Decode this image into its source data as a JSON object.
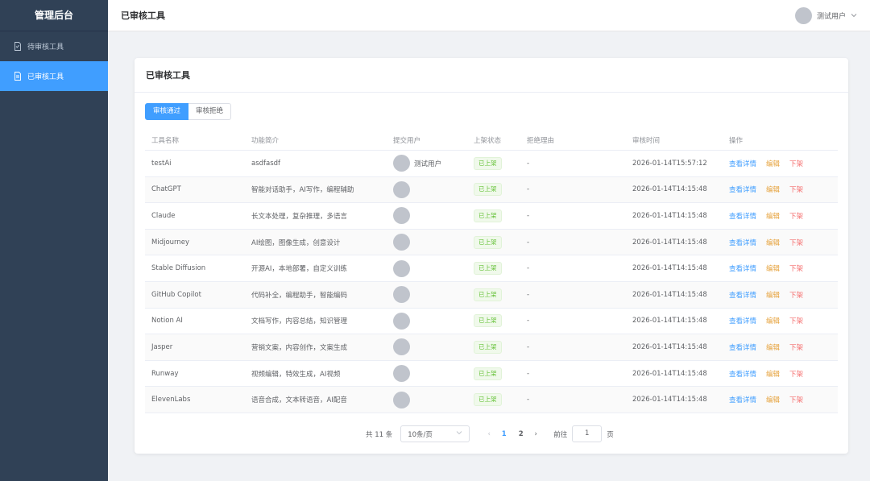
{
  "sidebar": {
    "title": "管理后台",
    "items": [
      {
        "label": "待审核工具"
      },
      {
        "label": "已审核工具"
      }
    ]
  },
  "header": {
    "title": "已审核工具",
    "user": "测试用户"
  },
  "card": {
    "title": "已审核工具",
    "tabs": [
      {
        "label": "审核通过"
      },
      {
        "label": "审核拒绝"
      }
    ]
  },
  "table": {
    "columns": [
      "工具名称",
      "功能简介",
      "提交用户",
      "上架状态",
      "拒绝理由",
      "审核时间",
      "操作"
    ],
    "rows": [
      {
        "name": "testAi",
        "desc": "asdfasdf",
        "user": "测试用户",
        "status": "已上架",
        "reason": "-",
        "time": "2026-01-14T15:57:12"
      },
      {
        "name": "ChatGPT",
        "desc": "智能对话助手，AI写作，编程辅助",
        "user": "",
        "status": "已上架",
        "reason": "-",
        "time": "2026-01-14T14:15:48"
      },
      {
        "name": "Claude",
        "desc": "长文本处理，复杂推理，多语言",
        "user": "",
        "status": "已上架",
        "reason": "-",
        "time": "2026-01-14T14:15:48"
      },
      {
        "name": "Midjourney",
        "desc": "AI绘图，图像生成，创意设计",
        "user": "",
        "status": "已上架",
        "reason": "-",
        "time": "2026-01-14T14:15:48"
      },
      {
        "name": "Stable Diffusion",
        "desc": "开源AI，本地部署，自定义训练",
        "user": "",
        "status": "已上架",
        "reason": "-",
        "time": "2026-01-14T14:15:48"
      },
      {
        "name": "GitHub Copilot",
        "desc": "代码补全，编程助手，智能编码",
        "user": "",
        "status": "已上架",
        "reason": "-",
        "time": "2026-01-14T14:15:48"
      },
      {
        "name": "Notion AI",
        "desc": "文档写作，内容总结，知识管理",
        "user": "",
        "status": "已上架",
        "reason": "-",
        "time": "2026-01-14T14:15:48"
      },
      {
        "name": "Jasper",
        "desc": "营销文案，内容创作，文案生成",
        "user": "",
        "status": "已上架",
        "reason": "-",
        "time": "2026-01-14T14:15:48"
      },
      {
        "name": "Runway",
        "desc": "视频编辑，特效生成，AI视频",
        "user": "",
        "status": "已上架",
        "reason": "-",
        "time": "2026-01-14T14:15:48"
      },
      {
        "name": "ElevenLabs",
        "desc": "语音合成，文本转语音，AI配音",
        "user": "",
        "status": "已上架",
        "reason": "-",
        "time": "2026-01-14T14:15:48"
      }
    ],
    "actions": {
      "detail": "查看详情",
      "edit": "编辑",
      "off": "下架"
    }
  },
  "pagination": {
    "total": "共 11 条",
    "page_size": "10条/页",
    "pages": [
      "1",
      "2"
    ],
    "current": "1",
    "goto_label": "前往",
    "goto_value": "1",
    "page_suffix": "页"
  }
}
